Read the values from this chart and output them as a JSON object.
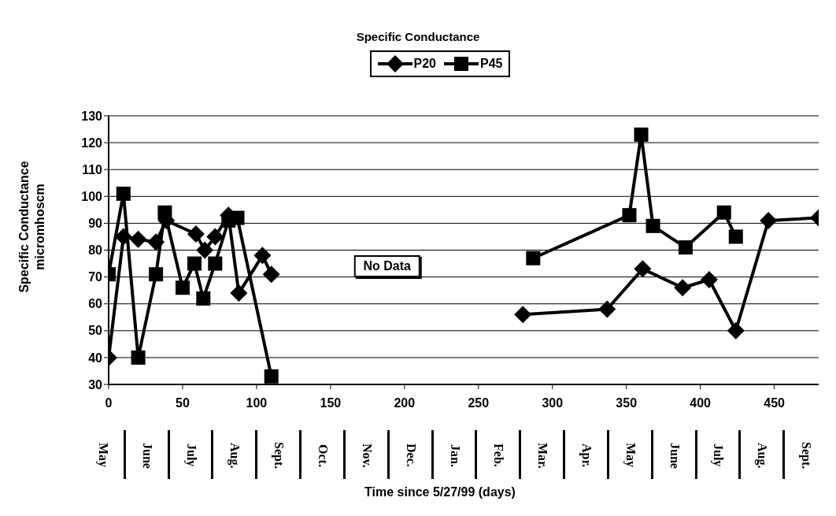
{
  "chart_data": {
    "type": "line",
    "title": "Specific Conductance",
    "ylabel": "Specific Conductance micromhoscm",
    "xlim": [
      0,
      480
    ],
    "xticks": [
      0,
      50,
      100,
      150,
      200,
      250,
      300,
      350,
      400,
      450
    ],
    "ylim": [
      30,
      130
    ],
    "yticks": [
      30,
      40,
      50,
      60,
      70,
      80,
      90,
      100,
      110,
      120,
      130
    ],
    "grid": "y",
    "legend": "top",
    "line_style": "solid",
    "series": [
      {
        "name": "P20",
        "color": "#000000",
        "marker": "diamond",
        "x": [
          0,
          10,
          20,
          32,
          39,
          59,
          65,
          72,
          81,
          88,
          104,
          110,
          200,
          280,
          337,
          361,
          388,
          406,
          424,
          446,
          480
        ],
        "values": [
          40,
          85,
          84,
          83,
          91,
          86,
          80,
          85,
          93,
          64,
          78,
          71,
          null,
          56,
          58,
          73,
          66,
          69,
          50,
          91,
          92
        ]
      },
      {
        "name": "P45",
        "color": "#000000",
        "marker": "square",
        "x": [
          0,
          10,
          20,
          32,
          38,
          50,
          58,
          64,
          72,
          81,
          87,
          110,
          200,
          287,
          352,
          360,
          368,
          390,
          416,
          424
        ],
        "values": [
          71,
          101,
          40,
          71,
          94,
          66,
          75,
          62,
          75,
          91,
          92,
          33,
          null,
          77,
          93,
          123,
          89,
          81,
          94,
          85
        ]
      }
    ],
    "annotations": [
      "No Data",
      "May",
      "June",
      "July",
      "Aug.",
      "Sept.",
      "Oct.",
      "Nov.",
      "Dec.",
      "Jan.",
      "Feb.",
      "Mar.",
      "Apr.",
      "May",
      "June",
      "July",
      "Aug.",
      "Sept.",
      "Time since 5/27/99 (days)"
    ]
  }
}
